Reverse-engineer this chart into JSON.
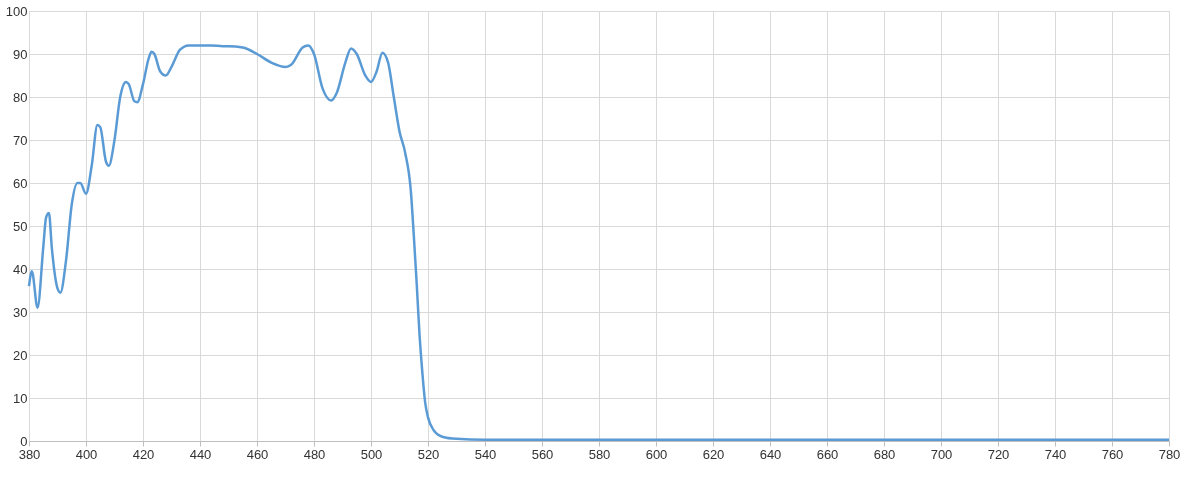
{
  "chart_data": {
    "type": "line",
    "xlim": [
      380,
      780
    ],
    "ylim": [
      0,
      100
    ],
    "xticks": [
      380,
      400,
      420,
      440,
      460,
      480,
      500,
      520,
      540,
      560,
      580,
      600,
      620,
      640,
      660,
      680,
      700,
      720,
      740,
      760,
      780
    ],
    "yticks": [
      0,
      10,
      20,
      30,
      40,
      50,
      60,
      70,
      80,
      90,
      100
    ],
    "grid": true,
    "marker": "none",
    "line_style": "solid",
    "series": [
      {
        "color": "#5b9bd5",
        "x": [
          380,
          381,
          383,
          385,
          386,
          387,
          388,
          390,
          391,
          393,
          395,
          397,
          398,
          400,
          402,
          404,
          405,
          407,
          408,
          410,
          412,
          414,
          415,
          417,
          418,
          420,
          422,
          423,
          424,
          426,
          428,
          430,
          433,
          436,
          440,
          444,
          448,
          450,
          455,
          460,
          465,
          470,
          472,
          476,
          478,
          480,
          483,
          486,
          488,
          491,
          493,
          495,
          498,
          500,
          502,
          504,
          506,
          508,
          510,
          512,
          514,
          515,
          516,
          517,
          518,
          519,
          520,
          522,
          525,
          530,
          540,
          560,
          600,
          700,
          780
        ],
        "values": [
          36,
          39.5,
          31,
          45,
          52,
          53,
          45,
          35.5,
          34.5,
          42,
          55,
          60,
          60,
          57.5,
          64,
          73.5,
          73,
          65,
          64,
          70,
          80,
          83.5,
          83,
          79,
          78.8,
          83,
          89,
          90.5,
          90,
          86,
          85,
          87,
          91,
          92,
          92,
          92,
          91.8,
          91.8,
          91.5,
          90,
          88,
          87,
          87.5,
          91.5,
          92,
          90,
          82,
          79.2,
          81,
          88,
          91.3,
          90,
          85,
          83.5,
          86,
          90.3,
          88,
          80,
          72,
          67,
          58,
          48,
          37,
          25,
          16,
          9,
          5.5,
          2.5,
          1,
          0.5,
          0.3,
          0.3,
          0.3,
          0.3,
          0.3
        ]
      }
    ]
  }
}
